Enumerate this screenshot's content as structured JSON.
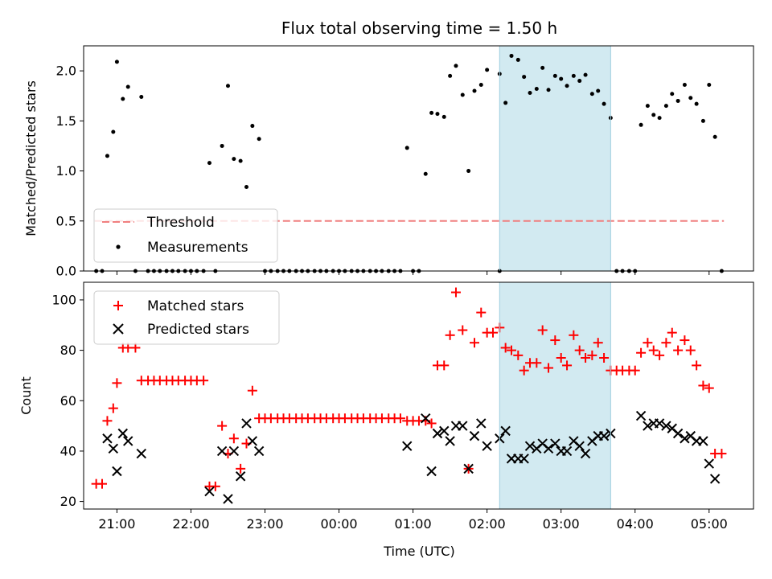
{
  "chart_data": [
    {
      "type": "scatter",
      "title": "Flux total observing time = 1.50 h",
      "xlabel": "",
      "ylabel": "Matched/Predicted stars",
      "xlim": [
        20.55,
        5.6
      ],
      "ylim": [
        0.0,
        2.25
      ],
      "yticks": [
        0.0,
        0.5,
        1.0,
        1.5,
        2.0
      ],
      "ytick_labels": [
        "0.0",
        "0.5",
        "1.0",
        "1.5",
        "2.0"
      ],
      "highlight_band": {
        "x_start": 2.17,
        "x_end": 3.67,
        "color": "#add8e6"
      },
      "threshold": {
        "name": "Threshold",
        "value": 0.5,
        "x_start": 20.7,
        "x_end": 5.2,
        "color": "#f08080"
      },
      "legend": [
        "Threshold",
        "Measurements"
      ],
      "legend_position": "lower left",
      "series": [
        {
          "name": "Measurements",
          "color": "#000000",
          "points": [
            [
              20.72,
              0
            ],
            [
              20.8,
              0
            ],
            [
              20.87,
              1.15
            ],
            [
              20.95,
              1.39
            ],
            [
              21.0,
              2.09
            ],
            [
              21.08,
              1.72
            ],
            [
              21.15,
              1.84
            ],
            [
              21.25,
              0
            ],
            [
              21.33,
              1.74
            ],
            [
              21.42,
              0
            ],
            [
              21.5,
              0
            ],
            [
              21.58,
              0
            ],
            [
              21.67,
              0
            ],
            [
              21.75,
              0
            ],
            [
              21.83,
              0
            ],
            [
              21.92,
              0
            ],
            [
              22.0,
              0
            ],
            [
              22.08,
              0
            ],
            [
              22.17,
              0
            ],
            [
              22.25,
              1.08
            ],
            [
              22.33,
              0
            ],
            [
              22.42,
              1.25
            ],
            [
              22.5,
              1.85
            ],
            [
              22.58,
              1.12
            ],
            [
              22.67,
              1.1
            ],
            [
              22.75,
              0.84
            ],
            [
              22.83,
              1.45
            ],
            [
              22.92,
              1.32
            ],
            [
              23.0,
              0
            ],
            [
              23.08,
              0
            ],
            [
              23.17,
              0
            ],
            [
              23.25,
              0
            ],
            [
              23.33,
              0
            ],
            [
              23.42,
              0
            ],
            [
              23.5,
              0
            ],
            [
              23.58,
              0
            ],
            [
              23.67,
              0
            ],
            [
              23.75,
              0
            ],
            [
              23.83,
              0
            ],
            [
              23.92,
              0
            ],
            [
              24.0,
              0
            ],
            [
              24.08,
              0
            ],
            [
              24.17,
              0
            ],
            [
              24.25,
              0
            ],
            [
              24.33,
              0
            ],
            [
              24.42,
              0
            ],
            [
              24.5,
              0
            ],
            [
              24.58,
              0
            ],
            [
              24.67,
              0
            ],
            [
              24.75,
              0
            ],
            [
              24.83,
              0
            ],
            [
              24.92,
              1.23
            ],
            [
              25.0,
              0
            ],
            [
              25.08,
              0
            ],
            [
              25.17,
              0.97
            ],
            [
              25.25,
              1.58
            ],
            [
              25.33,
              1.57
            ],
            [
              25.42,
              1.54
            ],
            [
              25.5,
              1.95
            ],
            [
              25.58,
              2.05
            ],
            [
              25.67,
              1.76
            ],
            [
              25.75,
              1.0
            ],
            [
              25.83,
              1.8
            ],
            [
              25.92,
              1.86
            ],
            [
              26.0,
              2.01
            ],
            [
              26.17,
              0
            ],
            [
              26.17,
              1.97
            ],
            [
              26.25,
              1.68
            ],
            [
              26.33,
              2.15
            ],
            [
              26.42,
              2.11
            ],
            [
              26.5,
              1.94
            ],
            [
              26.58,
              1.78
            ],
            [
              26.67,
              1.82
            ],
            [
              26.75,
              2.03
            ],
            [
              26.83,
              1.81
            ],
            [
              26.92,
              1.95
            ],
            [
              27.0,
              1.92
            ],
            [
              27.08,
              1.85
            ],
            [
              27.17,
              1.95
            ],
            [
              27.25,
              1.9
            ],
            [
              27.33,
              1.96
            ],
            [
              27.42,
              1.77
            ],
            [
              27.5,
              1.8
            ],
            [
              27.58,
              1.67
            ],
            [
              27.67,
              1.53
            ],
            [
              27.75,
              0
            ],
            [
              27.83,
              0
            ],
            [
              27.92,
              0
            ],
            [
              28.0,
              0
            ],
            [
              28.08,
              1.46
            ],
            [
              28.17,
              1.65
            ],
            [
              28.25,
              1.56
            ],
            [
              28.33,
              1.53
            ],
            [
              28.42,
              1.65
            ],
            [
              28.5,
              1.77
            ],
            [
              28.58,
              1.7
            ],
            [
              28.67,
              1.86
            ],
            [
              28.75,
              1.73
            ],
            [
              28.83,
              1.67
            ],
            [
              28.92,
              1.5
            ],
            [
              29.0,
              1.86
            ],
            [
              29.08,
              1.34
            ],
            [
              29.17,
              0
            ]
          ]
        }
      ]
    },
    {
      "type": "scatter",
      "title": "",
      "xlabel": "Time (UTC)",
      "ylabel": "Count",
      "xlim": [
        20.55,
        5.6
      ],
      "ylim": [
        17,
        107
      ],
      "yticks": [
        20,
        40,
        60,
        80,
        100
      ],
      "ytick_labels": [
        "20",
        "40",
        "60",
        "80",
        "100"
      ],
      "xticks": [
        21,
        22,
        23,
        0,
        1,
        2,
        3,
        4,
        5
      ],
      "xtick_labels": [
        "21:00",
        "22:00",
        "23:00",
        "00:00",
        "01:00",
        "02:00",
        "03:00",
        "04:00",
        "05:00"
      ],
      "highlight_band": {
        "x_start": 2.17,
        "x_end": 3.67,
        "color": "#add8e6"
      },
      "legend": [
        "Matched stars",
        "Predicted stars"
      ],
      "legend_position": "upper left",
      "series": [
        {
          "name": "Matched stars",
          "marker": "+",
          "color": "#ff0000",
          "points": [
            [
              20.72,
              27
            ],
            [
              20.8,
              27
            ],
            [
              20.87,
              52
            ],
            [
              20.95,
              57
            ],
            [
              21.0,
              67
            ],
            [
              21.08,
              81
            ],
            [
              21.15,
              81
            ],
            [
              21.25,
              81
            ],
            [
              21.33,
              68
            ],
            [
              21.42,
              68
            ],
            [
              21.5,
              68
            ],
            [
              21.58,
              68
            ],
            [
              21.67,
              68
            ],
            [
              21.75,
              68
            ],
            [
              21.83,
              68
            ],
            [
              21.92,
              68
            ],
            [
              22.0,
              68
            ],
            [
              22.08,
              68
            ],
            [
              22.17,
              68
            ],
            [
              22.25,
              26
            ],
            [
              22.33,
              26
            ],
            [
              22.42,
              50
            ],
            [
              22.5,
              39
            ],
            [
              22.58,
              45
            ],
            [
              22.67,
              33
            ],
            [
              22.75,
              43
            ],
            [
              22.83,
              64
            ],
            [
              22.92,
              53
            ],
            [
              23.0,
              53
            ],
            [
              23.08,
              53
            ],
            [
              23.17,
              53
            ],
            [
              23.25,
              53
            ],
            [
              23.33,
              53
            ],
            [
              23.42,
              53
            ],
            [
              23.5,
              53
            ],
            [
              23.58,
              53
            ],
            [
              23.67,
              53
            ],
            [
              23.75,
              53
            ],
            [
              23.83,
              53
            ],
            [
              23.92,
              53
            ],
            [
              24.0,
              53
            ],
            [
              24.08,
              53
            ],
            [
              24.17,
              53
            ],
            [
              24.25,
              53
            ],
            [
              24.33,
              53
            ],
            [
              24.42,
              53
            ],
            [
              24.5,
              53
            ],
            [
              24.58,
              53
            ],
            [
              24.67,
              53
            ],
            [
              24.75,
              53
            ],
            [
              24.83,
              53
            ],
            [
              24.92,
              52
            ],
            [
              25.0,
              52
            ],
            [
              25.08,
              52
            ],
            [
              25.17,
              52
            ],
            [
              25.25,
              51
            ],
            [
              25.33,
              74
            ],
            [
              25.42,
              74
            ],
            [
              25.5,
              86
            ],
            [
              25.58,
              103
            ],
            [
              25.67,
              88
            ],
            [
              25.75,
              33
            ],
            [
              25.83,
              83
            ],
            [
              25.92,
              95
            ],
            [
              26.0,
              87
            ],
            [
              26.08,
              87
            ],
            [
              26.17,
              89
            ],
            [
              26.25,
              81
            ],
            [
              26.33,
              80
            ],
            [
              26.42,
              78
            ],
            [
              26.5,
              72
            ],
            [
              26.58,
              75
            ],
            [
              26.67,
              75
            ],
            [
              26.75,
              88
            ],
            [
              26.83,
              73
            ],
            [
              26.92,
              84
            ],
            [
              27.0,
              77
            ],
            [
              27.08,
              74
            ],
            [
              27.17,
              86
            ],
            [
              27.25,
              80
            ],
            [
              27.33,
              77
            ],
            [
              27.42,
              78
            ],
            [
              27.5,
              83
            ],
            [
              27.58,
              77
            ],
            [
              27.67,
              72
            ],
            [
              27.75,
              72
            ],
            [
              27.83,
              72
            ],
            [
              27.92,
              72
            ],
            [
              28.0,
              72
            ],
            [
              28.08,
              79
            ],
            [
              28.17,
              83
            ],
            [
              28.25,
              80
            ],
            [
              28.33,
              78
            ],
            [
              28.42,
              83
            ],
            [
              28.5,
              87
            ],
            [
              28.58,
              80
            ],
            [
              28.67,
              84
            ],
            [
              28.75,
              80
            ],
            [
              28.83,
              74
            ],
            [
              28.92,
              66
            ],
            [
              29.0,
              65
            ],
            [
              29.08,
              39
            ],
            [
              29.17,
              39
            ]
          ]
        },
        {
          "name": "Predicted stars",
          "marker": "x",
          "color": "#000000",
          "points": [
            [
              20.87,
              45
            ],
            [
              20.95,
              41
            ],
            [
              21.0,
              32
            ],
            [
              21.08,
              47
            ],
            [
              21.15,
              44
            ],
            [
              21.33,
              39
            ],
            [
              22.25,
              24
            ],
            [
              22.42,
              40
            ],
            [
              22.5,
              21
            ],
            [
              22.58,
              40
            ],
            [
              22.67,
              30
            ],
            [
              22.75,
              51
            ],
            [
              22.83,
              44
            ],
            [
              22.92,
              40
            ],
            [
              24.92,
              42
            ],
            [
              25.17,
              53
            ],
            [
              25.25,
              32
            ],
            [
              25.33,
              47
            ],
            [
              25.42,
              48
            ],
            [
              25.5,
              44
            ],
            [
              25.58,
              50
            ],
            [
              25.67,
              50
            ],
            [
              25.75,
              33
            ],
            [
              25.83,
              46
            ],
            [
              25.92,
              51
            ],
            [
              26.0,
              42
            ],
            [
              26.17,
              45
            ],
            [
              26.25,
              48
            ],
            [
              26.33,
              37
            ],
            [
              26.42,
              37
            ],
            [
              26.5,
              37
            ],
            [
              26.58,
              42
            ],
            [
              26.67,
              41
            ],
            [
              26.75,
              43
            ],
            [
              26.83,
              41
            ],
            [
              26.92,
              43
            ],
            [
              27.0,
              40
            ],
            [
              27.08,
              40
            ],
            [
              27.17,
              44
            ],
            [
              27.25,
              42
            ],
            [
              27.33,
              39
            ],
            [
              27.42,
              44
            ],
            [
              27.5,
              46
            ],
            [
              27.58,
              46
            ],
            [
              27.67,
              47
            ],
            [
              28.08,
              54
            ],
            [
              28.17,
              50
            ],
            [
              28.25,
              51
            ],
            [
              28.33,
              51
            ],
            [
              28.42,
              50
            ],
            [
              28.5,
              49
            ],
            [
              28.58,
              47
            ],
            [
              28.67,
              45
            ],
            [
              28.75,
              46
            ],
            [
              28.83,
              44
            ],
            [
              28.92,
              44
            ],
            [
              29.0,
              35
            ],
            [
              29.08,
              29
            ]
          ]
        }
      ]
    }
  ]
}
